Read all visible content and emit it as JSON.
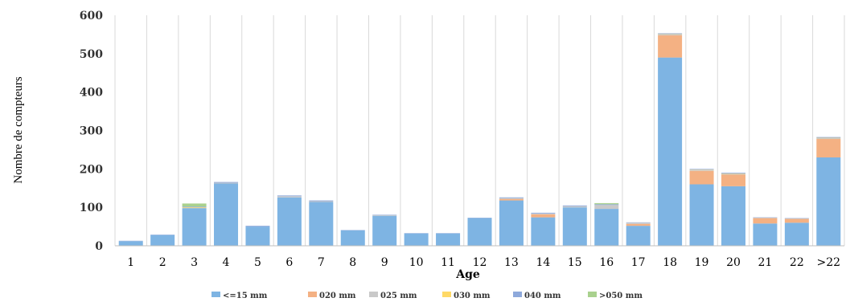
{
  "chart_data": {
    "type": "bar",
    "stacked": true,
    "title": "",
    "xlabel": "Age",
    "ylabel": "Nombre de compteurs",
    "ylim": [
      0,
      600
    ],
    "yticks": [
      0,
      100,
      200,
      300,
      400,
      500,
      600
    ],
    "grid": "vertical",
    "legend_position": "bottom",
    "categories": [
      "1",
      "2",
      "3",
      "4",
      "5",
      "6",
      "7",
      "8",
      "9",
      "10",
      "11",
      "12",
      "13",
      "14",
      "15",
      "16",
      "17",
      "18",
      "19",
      "20",
      "21",
      "22",
      ">22"
    ],
    "series": [
      {
        "name": "<=15 mm",
        "color": "#7EB4E3",
        "values": [
          12,
          28,
          98,
          162,
          50,
          126,
          114,
          40,
          78,
          32,
          32,
          72,
          118,
          74,
          100,
          96,
          52,
          490,
          160,
          155,
          58,
          60,
          230
        ]
      },
      {
        "name": "020 mm",
        "color": "#F4B183",
        "values": [
          0,
          0,
          0,
          0,
          0,
          0,
          0,
          0,
          0,
          0,
          0,
          0,
          4,
          8,
          0,
          0,
          5,
          58,
          35,
          30,
          14,
          10,
          48
        ]
      },
      {
        "name": "025 mm",
        "color": "#C9C9C9",
        "values": [
          0,
          0,
          0,
          2,
          0,
          3,
          2,
          0,
          2,
          0,
          0,
          0,
          2,
          2,
          3,
          10,
          3,
          2,
          2,
          2,
          1,
          1,
          2
        ]
      },
      {
        "name": "030 mm",
        "color": "#FFD966",
        "values": [
          0,
          0,
          2,
          0,
          0,
          0,
          0,
          0,
          0,
          0,
          0,
          0,
          0,
          0,
          0,
          0,
          0,
          1,
          1,
          1,
          0,
          0,
          1
        ]
      },
      {
        "name": "040 mm",
        "color": "#8EA9DB",
        "values": [
          1,
          1,
          2,
          2,
          2,
          2,
          2,
          1,
          1,
          1,
          1,
          1,
          2,
          2,
          2,
          2,
          1,
          2,
          2,
          2,
          1,
          1,
          2
        ]
      },
      {
        "name": ">050 mm",
        "color": "#A9D18E",
        "values": [
          0,
          0,
          8,
          0,
          0,
          0,
          0,
          0,
          0,
          0,
          0,
          0,
          0,
          0,
          0,
          3,
          0,
          0,
          0,
          0,
          0,
          0,
          0
        ]
      }
    ]
  }
}
